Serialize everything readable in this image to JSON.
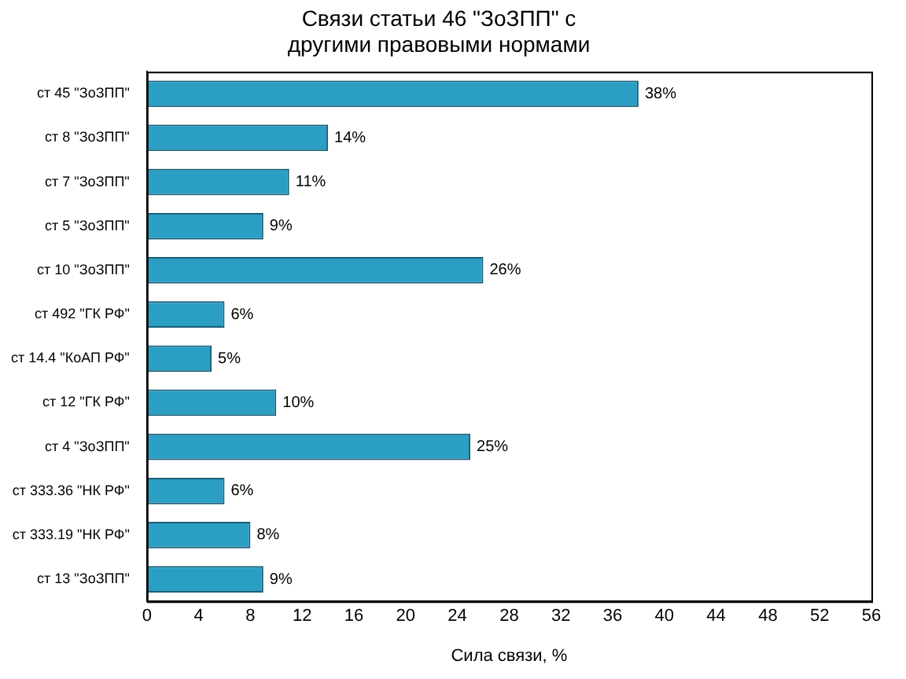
{
  "chart_data": {
    "type": "bar",
    "orientation": "horizontal",
    "title": "Связи статьи 46 \"ЗоЗПП\" с\nдругими правовыми нормами",
    "xlabel": "Сила связи, %",
    "categories": [
      "ст 45 \"ЗоЗПП\"",
      "ст 8 \"ЗоЗПП\"",
      "ст 7 \"ЗоЗПП\"",
      "ст 5 \"ЗоЗПП\"",
      "ст 10 \"ЗоЗПП\"",
      "ст 492 \"ГК РФ\"",
      "ст 14.4 \"КоАП РФ\"",
      "ст 12 \"ГК РФ\"",
      "ст 4 \"ЗоЗПП\"",
      "ст 333.36 \"НК РФ\"",
      "ст 333.19 \"НК РФ\"",
      "ст 13 \"ЗоЗПП\""
    ],
    "values": [
      38,
      14,
      11,
      9,
      26,
      6,
      5,
      10,
      25,
      6,
      8,
      9
    ],
    "value_labels": [
      "38%",
      "14%",
      "11%",
      "9%",
      "26%",
      "6%",
      "5%",
      "10%",
      "25%",
      "6%",
      "8%",
      "9%"
    ],
    "color": "#2b9ec4",
    "xlim": [
      0,
      56
    ],
    "xticks": [
      0,
      4,
      8,
      12,
      16,
      20,
      24,
      28,
      32,
      36,
      40,
      44,
      48,
      52,
      56
    ],
    "grid": false,
    "legend": false
  }
}
